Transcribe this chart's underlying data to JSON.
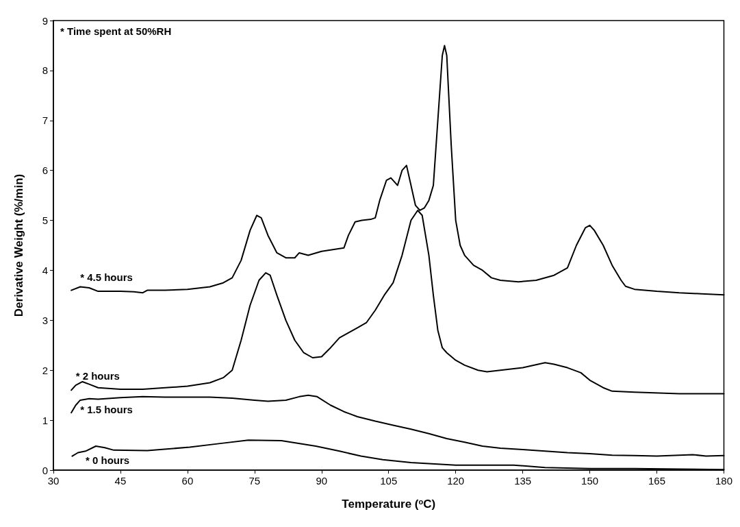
{
  "chart_data": {
    "type": "line",
    "xlabel": "Temperature ($^{o}$C)",
    "ylabel": "Derivative Weight (%/min)",
    "annotations": [
      "* Time spent at 50%RH"
    ],
    "xlim": [
      30,
      180
    ],
    "xticks": [
      30,
      45,
      60,
      75,
      90,
      105,
      120,
      135,
      150,
      165,
      180
    ],
    "ylim": [
      0,
      9
    ],
    "yticks": [
      0,
      1,
      2,
      3,
      4,
      5,
      6,
      7,
      8,
      9
    ],
    "grid": false,
    "legend": false,
    "marker": "none",
    "line_style": "solid",
    "series": [
      {
        "name": "* 4.5 hours",
        "color": "#000000",
        "x": [
          34,
          36,
          38,
          40,
          45,
          48,
          50,
          51,
          55,
          60,
          65,
          68,
          70,
          72,
          74,
          75.5,
          76.5,
          78,
          80,
          82,
          84,
          85,
          87,
          90,
          93,
          95,
          96,
          97.5,
          99,
          101,
          102,
          103,
          104.5,
          105.5,
          106.5,
          107,
          108,
          109,
          110,
          111,
          112,
          113,
          114,
          115,
          116,
          117,
          117.5,
          118,
          119,
          120,
          121,
          122,
          124,
          126,
          128,
          130,
          134,
          138,
          142,
          145,
          147,
          149,
          150,
          151,
          153,
          155,
          157,
          158,
          160,
          165,
          170,
          175,
          180
        ],
        "values": [
          3.6,
          3.67,
          3.65,
          3.58,
          3.58,
          3.57,
          3.55,
          3.6,
          3.6,
          3.62,
          3.67,
          3.75,
          3.85,
          4.2,
          4.8,
          5.1,
          5.05,
          4.7,
          4.35,
          4.25,
          4.25,
          4.35,
          4.3,
          4.38,
          4.42,
          4.45,
          4.7,
          4.97,
          5.0,
          5.02,
          5.05,
          5.4,
          5.8,
          5.85,
          5.75,
          5.7,
          6.0,
          6.1,
          5.7,
          5.3,
          5.2,
          5.25,
          5.4,
          5.7,
          7.0,
          8.3,
          8.5,
          8.3,
          6.5,
          5.0,
          4.5,
          4.3,
          4.1,
          4.0,
          3.85,
          3.8,
          3.77,
          3.8,
          3.9,
          4.05,
          4.5,
          4.85,
          4.9,
          4.8,
          4.5,
          4.1,
          3.8,
          3.68,
          3.62,
          3.58,
          3.55,
          3.53,
          3.51
        ]
      },
      {
        "name": "* 2 hours",
        "color": "#000000",
        "x": [
          34,
          35,
          36.5,
          38,
          40,
          45,
          50,
          55,
          60,
          65,
          68,
          70,
          72,
          74,
          76,
          77.5,
          78.5,
          80,
          82,
          84,
          86,
          88,
          90,
          92,
          94,
          96,
          98,
          100,
          102,
          104,
          106,
          108,
          110,
          111.5,
          112.5,
          114,
          115,
          116,
          117,
          118,
          120,
          122,
          125,
          127,
          130,
          135,
          140,
          142,
          145,
          148,
          150,
          153,
          155,
          160,
          170,
          180
        ],
        "values": [
          1.6,
          1.7,
          1.77,
          1.72,
          1.65,
          1.62,
          1.62,
          1.65,
          1.68,
          1.75,
          1.85,
          2.0,
          2.6,
          3.3,
          3.8,
          3.95,
          3.9,
          3.5,
          3.0,
          2.6,
          2.35,
          2.25,
          2.27,
          2.45,
          2.65,
          2.75,
          2.85,
          2.95,
          3.2,
          3.5,
          3.75,
          4.3,
          5.0,
          5.2,
          5.1,
          4.3,
          3.5,
          2.8,
          2.45,
          2.35,
          2.2,
          2.1,
          2.0,
          1.97,
          2.0,
          2.05,
          2.15,
          2.12,
          2.05,
          1.95,
          1.8,
          1.65,
          1.58,
          1.56,
          1.53,
          1.53
        ]
      },
      {
        "name": "* 1.5 hours",
        "color": "#000000",
        "x": [
          34,
          35,
          36,
          38,
          40,
          45,
          50,
          55,
          60,
          65,
          70,
          75,
          78,
          82,
          85,
          87,
          89,
          92,
          95,
          98,
          102,
          106,
          110,
          114,
          118,
          122,
          126,
          130,
          135,
          140,
          145,
          150,
          155,
          160,
          165,
          170,
          173,
          176,
          180
        ],
        "values": [
          1.15,
          1.3,
          1.4,
          1.43,
          1.42,
          1.45,
          1.47,
          1.46,
          1.46,
          1.46,
          1.44,
          1.4,
          1.38,
          1.4,
          1.47,
          1.5,
          1.47,
          1.3,
          1.17,
          1.07,
          0.98,
          0.9,
          0.82,
          0.73,
          0.63,
          0.56,
          0.48,
          0.44,
          0.41,
          0.38,
          0.35,
          0.33,
          0.3,
          0.29,
          0.28,
          0.3,
          0.31,
          0.28,
          0.29
        ]
      },
      {
        "name": "* 0 hours",
        "color": "#000000",
        "x": [
          34.2,
          35.5,
          37.2,
          39.5,
          41.5,
          43.5,
          51,
          60.5,
          67,
          73.6,
          81,
          88.7,
          94,
          98.8,
          103.7,
          110,
          120,
          130,
          133,
          140,
          150,
          160,
          170,
          180
        ],
        "values": [
          0.28,
          0.35,
          0.38,
          0.48,
          0.45,
          0.4,
          0.39,
          0.46,
          0.53,
          0.6,
          0.59,
          0.48,
          0.38,
          0.28,
          0.21,
          0.15,
          0.1,
          0.1,
          0.1,
          0.05,
          0.03,
          0.03,
          0.02,
          0.01
        ]
      }
    ]
  }
}
